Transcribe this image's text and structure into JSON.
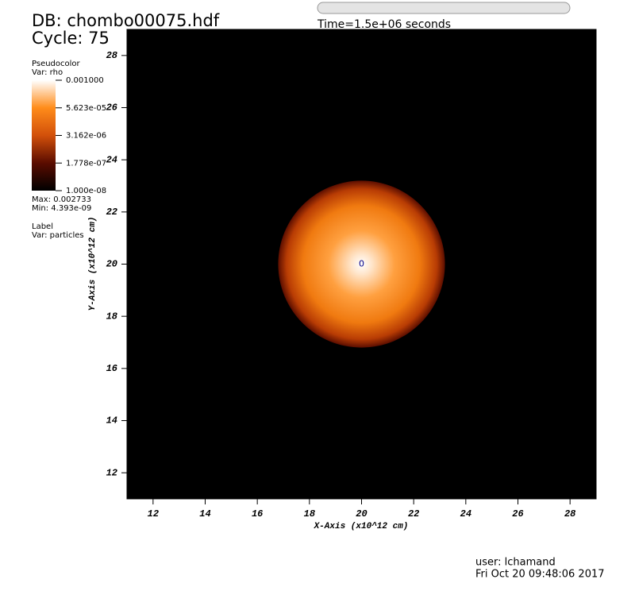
{
  "chart_data": {
    "type": "pseudocolor",
    "title": "DB: chombo00075.hdf",
    "cycle": "Cycle: 75",
    "time": "Time=1.5e+06 seconds",
    "xlabel": "X-Axis (x10^12 cm)",
    "ylabel": "Y-Axis (x10^12 cm)",
    "xlim": [
      11,
      29
    ],
    "ylim": [
      11,
      29
    ],
    "xticks": [
      12,
      14,
      16,
      18,
      20,
      22,
      24,
      26,
      28
    ],
    "yticks": [
      12,
      14,
      16,
      18,
      20,
      22,
      24,
      26,
      28
    ],
    "sphere": {
      "center": [
        20,
        20
      ],
      "radius": 3.2
    },
    "legend": {
      "plot": "Pseudocolor",
      "var": "Var: rho",
      "log": true,
      "clim": [
        1e-08,
        0.001
      ],
      "ticks": [
        {
          "value": 0.001,
          "label": "0.001000"
        },
        {
          "value": 5.623e-05,
          "label": "5.623e-05"
        },
        {
          "value": 3.162e-06,
          "label": "3.162e-06"
        },
        {
          "value": 1.778e-07,
          "label": "1.778e-07"
        },
        {
          "value": 1e-08,
          "label": "1.000e-08"
        }
      ],
      "max": "Max:  0.002733",
      "min": "Min:  4.393e-09"
    },
    "label_plot": {
      "plot": "Label",
      "var": "Var: particles",
      "marker": "0",
      "at": [
        20,
        20
      ]
    },
    "user": "user: lchamand",
    "date": "Fri Oct 20 09:48:06 2017"
  }
}
